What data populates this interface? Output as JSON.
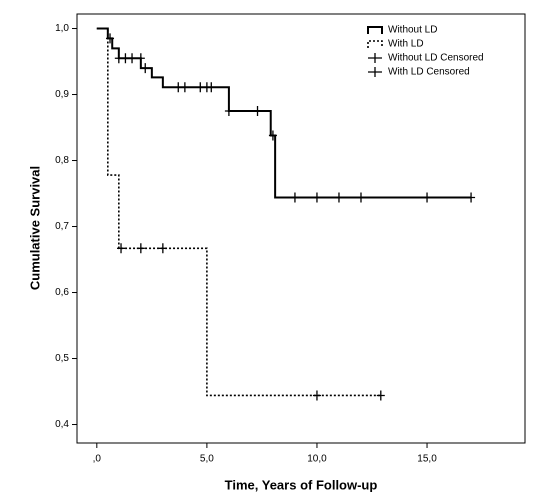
{
  "chart_data": {
    "type": "line",
    "step": "post",
    "x_label": "Time, Years of Follow-up",
    "y_label": "Cumulative Survival",
    "xlim": [
      -0.9,
      19.45
    ],
    "ylim": [
      0.372,
      1.022
    ],
    "xticks": [
      {
        "value": 0,
        "label": ",0"
      },
      {
        "value": 5,
        "label": "5,0"
      },
      {
        "value": 10,
        "label": "10,0"
      },
      {
        "value": 15,
        "label": "15,0"
      }
    ],
    "yticks": [
      {
        "value": 0.4,
        "label": "0,4"
      },
      {
        "value": 0.5,
        "label": "0,5"
      },
      {
        "value": 0.6,
        "label": "0,6"
      },
      {
        "value": 0.7,
        "label": "0,7"
      },
      {
        "value": 0.8,
        "label": "0,8"
      },
      {
        "value": 0.9,
        "label": "0,9"
      },
      {
        "value": 1.0,
        "label": "1,0"
      }
    ],
    "series": [
      {
        "name": "Without LD",
        "color": "#000000",
        "style": "solid",
        "x": [
          0,
          0.5,
          0.7,
          1.0,
          2.0,
          2.5,
          3.0,
          6.0,
          7.9,
          8.1,
          17.0
        ],
        "values": [
          1.0,
          0.985,
          0.97,
          0.955,
          0.94,
          0.926,
          0.911,
          0.875,
          0.838,
          0.744,
          0.744
        ]
      },
      {
        "name": "With LD",
        "color": "#000000",
        "style": "dotted",
        "x": [
          0,
          0.5,
          1.0,
          5.0,
          12.9
        ],
        "values": [
          1.0,
          0.778,
          0.667,
          0.444,
          0.444
        ]
      },
      {
        "name": "Without LD Censored",
        "color": "#000000",
        "style": "marker",
        "x": [
          0.6,
          1.0,
          1.3,
          1.6,
          2.0,
          2.2,
          3.7,
          4.0,
          4.7,
          5.0,
          5.2,
          6.0,
          7.3,
          8.0,
          9.0,
          10.0,
          11.0,
          12.0,
          15.0,
          17.0
        ],
        "values": [
          0.985,
          0.955,
          0.955,
          0.955,
          0.955,
          0.94,
          0.911,
          0.911,
          0.911,
          0.911,
          0.911,
          0.875,
          0.875,
          0.838,
          0.744,
          0.744,
          0.744,
          0.744,
          0.744,
          0.744
        ]
      },
      {
        "name": "With LD Censored",
        "color": "#000000",
        "style": "marker",
        "x": [
          1.1,
          2.0,
          3.0,
          10.0,
          12.9
        ],
        "values": [
          0.667,
          0.667,
          0.667,
          0.444,
          0.444
        ]
      }
    ]
  }
}
